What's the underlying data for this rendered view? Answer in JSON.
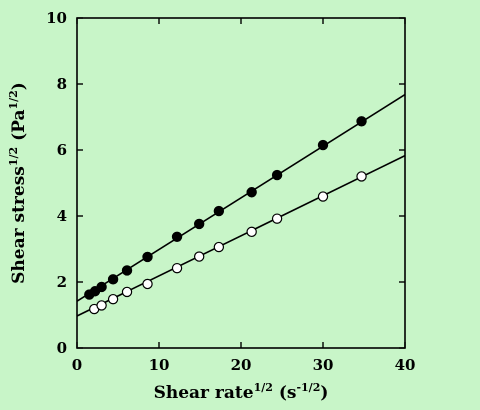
{
  "chart_data": {
    "type": "scatter",
    "xlabel": {
      "main": "Shear rate",
      "sup": "1/2",
      "unit_open": " (s",
      "unit_sup": "-1/2",
      "unit_close": ")"
    },
    "ylabel": {
      "main": "Shear stress",
      "sup": "1/2",
      "unit_open": " (Pa",
      "unit_sup": "1/2",
      "unit_close": ")"
    },
    "xlim": [
      0,
      40
    ],
    "ylim": [
      0,
      10
    ],
    "xticks": [
      0,
      10,
      20,
      30,
      40
    ],
    "yticks": [
      0,
      2,
      4,
      6,
      8,
      10
    ],
    "grid": false,
    "legend": "none",
    "series": [
      {
        "marker": "filled-circle",
        "color": "#000000",
        "x": [
          1.5,
          2.2,
          3.0,
          4.4,
          6.1,
          8.6,
          12.2,
          14.9,
          17.3,
          21.3,
          24.4,
          30.0,
          34.7
        ],
        "y": [
          1.62,
          1.72,
          1.85,
          2.08,
          2.35,
          2.76,
          3.37,
          3.76,
          4.15,
          4.72,
          5.24,
          6.15,
          6.87
        ],
        "fit": {
          "x": [
            0,
            40
          ],
          "y": [
            1.42,
            7.68
          ]
        }
      },
      {
        "marker": "open-circle",
        "color": "#000000",
        "x": [
          2.1,
          3.0,
          4.4,
          6.1,
          8.6,
          12.2,
          14.9,
          17.3,
          21.3,
          24.4,
          30.0,
          34.7
        ],
        "y": [
          1.18,
          1.29,
          1.48,
          1.7,
          1.94,
          2.42,
          2.77,
          3.06,
          3.52,
          3.92,
          4.59,
          5.2
        ],
        "fit": {
          "x": [
            0,
            40
          ],
          "y": [
            0.97,
            5.83
          ]
        }
      }
    ]
  }
}
